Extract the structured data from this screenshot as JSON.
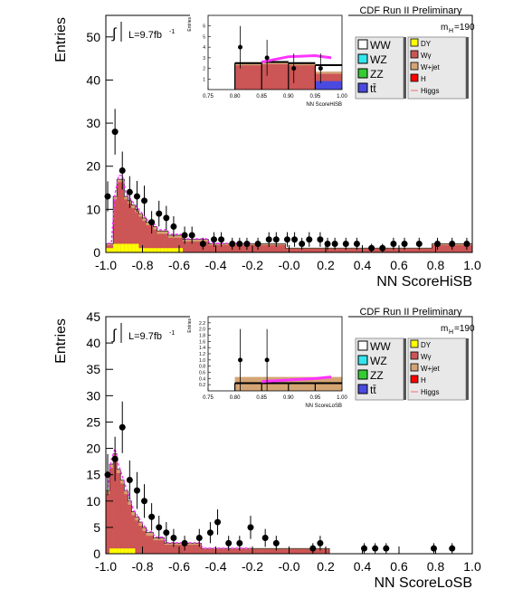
{
  "chart_data": [
    {
      "type": "bar",
      "header": "CDF Run II Preliminary",
      "lumi_label": "L=9.7fb",
      "lumi_exponent": "-1",
      "integral_symbol": "∫",
      "mass_label": "m",
      "mass_subscript": "H",
      "mass_value": "=190",
      "xlabel": "NN ScoreHiSB",
      "ylabel": "Entries",
      "xlim": [
        -1.0,
        1.0
      ],
      "ylim": [
        0,
        55
      ],
      "xticks": [
        "-1.0",
        "-0.8",
        "-0.6",
        "-0.4",
        "-0.2",
        "-0.0",
        "0.2",
        "0.4",
        "0.6",
        "0.8",
        "1.0"
      ],
      "yticks": [
        "0",
        "10",
        "20",
        "30",
        "40",
        "50"
      ],
      "bin_edges_start": -1.0,
      "bin_width": 0.02,
      "stack_total": [
        2,
        2,
        13,
        17,
        17,
        13,
        12,
        11,
        10,
        9,
        8,
        7,
        7,
        6,
        5,
        5,
        5,
        4,
        4,
        4,
        4,
        3,
        3,
        3,
        3,
        3,
        3,
        3,
        2,
        2,
        2,
        2,
        2,
        2,
        2,
        2,
        2,
        2,
        2,
        2,
        2,
        2,
        2,
        2,
        2,
        2,
        2,
        2,
        2,
        1,
        1,
        1,
        1,
        1,
        1,
        1,
        1,
        1,
        1,
        1,
        1,
        1,
        1,
        1,
        1,
        1,
        1,
        1,
        1,
        1,
        1,
        1,
        1,
        1,
        1,
        1,
        1,
        1,
        1,
        1,
        1,
        1,
        1,
        1,
        1,
        1,
        1,
        1,
        1,
        2,
        2,
        2,
        2,
        2,
        2,
        2,
        2,
        2,
        2,
        2
      ],
      "stack_yellow": [
        1,
        1,
        2,
        2,
        2,
        2,
        2,
        2,
        2,
        1,
        1,
        1,
        1,
        1,
        1,
        1,
        1,
        1,
        1,
        1,
        1,
        0,
        0,
        0,
        0,
        0,
        0,
        0,
        0,
        0,
        0,
        0,
        0,
        0,
        0,
        0,
        0,
        0,
        0,
        0,
        0,
        0,
        0,
        0,
        0,
        0,
        0,
        0,
        0,
        0,
        0,
        0,
        0,
        0,
        0,
        0,
        0,
        0,
        0,
        0,
        0,
        0,
        0,
        0,
        0,
        0,
        0,
        0,
        0,
        0,
        0,
        0,
        0,
        0,
        0,
        0,
        0,
        0,
        0,
        0,
        0,
        0,
        0,
        0,
        0,
        0,
        0,
        0,
        0,
        0,
        0,
        0,
        0,
        0,
        0,
        0,
        0,
        0,
        0,
        0
      ],
      "data_points": [
        {
          "x": -0.99,
          "y": 13,
          "err": 3.5
        },
        {
          "x": -0.95,
          "y": 28,
          "err": 5.3
        },
        {
          "x": -0.91,
          "y": 19,
          "err": 4.4
        },
        {
          "x": -0.87,
          "y": 14,
          "err": 3.7
        },
        {
          "x": -0.83,
          "y": 13,
          "err": 3.6
        },
        {
          "x": -0.79,
          "y": 12,
          "err": 3.5
        },
        {
          "x": -0.75,
          "y": 7,
          "err": 2.6
        },
        {
          "x": -0.71,
          "y": 9,
          "err": 3.0
        },
        {
          "x": -0.67,
          "y": 8,
          "err": 2.8
        },
        {
          "x": -0.63,
          "y": 6,
          "err": 2.4
        },
        {
          "x": -0.57,
          "y": 4,
          "err": 2.0
        },
        {
          "x": -0.53,
          "y": 4,
          "err": 2.0
        },
        {
          "x": -0.47,
          "y": 2,
          "err": 1.4
        },
        {
          "x": -0.41,
          "y": 3,
          "err": 1.7
        },
        {
          "x": -0.37,
          "y": 3,
          "err": 1.7
        },
        {
          "x": -0.31,
          "y": 2,
          "err": 1.4
        },
        {
          "x": -0.27,
          "y": 2,
          "err": 1.4
        },
        {
          "x": -0.23,
          "y": 2,
          "err": 1.4
        },
        {
          "x": -0.17,
          "y": 2,
          "err": 1.4
        },
        {
          "x": -0.11,
          "y": 3,
          "err": 1.7
        },
        {
          "x": -0.07,
          "y": 3,
          "err": 1.7
        },
        {
          "x": -0.01,
          "y": 3,
          "err": 1.7
        },
        {
          "x": 0.03,
          "y": 3,
          "err": 1.7
        },
        {
          "x": 0.07,
          "y": 2,
          "err": 1.4
        },
        {
          "x": 0.11,
          "y": 3,
          "err": 1.7
        },
        {
          "x": 0.17,
          "y": 3,
          "err": 1.7
        },
        {
          "x": 0.21,
          "y": 2,
          "err": 1.4
        },
        {
          "x": 0.25,
          "y": 2,
          "err": 1.4
        },
        {
          "x": 0.31,
          "y": 2,
          "err": 1.4
        },
        {
          "x": 0.37,
          "y": 2,
          "err": 1.4
        },
        {
          "x": 0.45,
          "y": 1,
          "err": 1.0
        },
        {
          "x": 0.51,
          "y": 1,
          "err": 1.0
        },
        {
          "x": 0.57,
          "y": 2,
          "err": 1.4
        },
        {
          "x": 0.63,
          "y": 2,
          "err": 1.4
        },
        {
          "x": 0.71,
          "y": 2,
          "err": 1.4
        },
        {
          "x": 0.81,
          "y": 2,
          "err": 1.4
        },
        {
          "x": 0.89,
          "y": 2,
          "err": 1.4
        },
        {
          "x": 0.97,
          "y": 2,
          "err": 1.4
        }
      ],
      "inset": {
        "xlabel": "NN ScoreHiSB",
        "ylabel": "Entries",
        "xlim": [
          0.75,
          1.0
        ],
        "ylim": [
          0,
          7
        ],
        "xticks": [
          "0.75",
          "0.80",
          "0.85",
          "0.90",
          "0.95",
          "1.00"
        ],
        "yticks": [
          "1",
          "2",
          "3",
          "4",
          "5",
          "6"
        ],
        "bins": [
          {
            "x0": 0.8,
            "x1": 0.85,
            "red": 2.3,
            "tan": 0.2,
            "black_top": 2.5,
            "blue": 0
          },
          {
            "x0": 0.85,
            "x1": 0.9,
            "red": 2.4,
            "tan": 0.2,
            "black_top": 2.6,
            "blue": 0
          },
          {
            "x0": 0.9,
            "x1": 0.95,
            "red": 2.3,
            "tan": 0.2,
            "black_top": 2.5,
            "blue": 0
          },
          {
            "x0": 0.95,
            "x1": 1.0,
            "red": 1.5,
            "tan": 0.2,
            "black_top": 2.3,
            "blue": 0.8
          }
        ],
        "higgs_curve": [
          [
            0.85,
            2.6
          ],
          [
            0.9,
            3.1
          ],
          [
            0.95,
            3.2
          ],
          [
            0.98,
            3.0
          ]
        ],
        "data_points": [
          {
            "x": 0.81,
            "y": 4,
            "err": 2.0
          },
          {
            "x": 0.86,
            "y": 3,
            "err": 1.7
          },
          {
            "x": 0.91,
            "y": 2,
            "err": 1.4
          },
          {
            "x": 0.96,
            "y": 2,
            "err": 1.4
          }
        ]
      }
    },
    {
      "type": "bar",
      "header": "CDF Run II Preliminary",
      "lumi_label": "L=9.7fb",
      "lumi_exponent": "-1",
      "integral_symbol": "∫",
      "mass_label": "m",
      "mass_subscript": "H",
      "mass_value": "=190",
      "xlabel": "NN ScoreLoSB",
      "ylabel": "Entries",
      "xlim": [
        -1.0,
        1.0
      ],
      "ylim": [
        0,
        45
      ],
      "xticks": [
        "-1.0",
        "-0.8",
        "-0.6",
        "-0.4",
        "-0.2",
        "-0.0",
        "0.2",
        "0.4",
        "0.6",
        "0.8",
        "1.0"
      ],
      "yticks": [
        "0",
        "5",
        "10",
        "15",
        "20",
        "25",
        "30",
        "35",
        "40",
        "45"
      ],
      "data_points": [
        {
          "x": -0.99,
          "y": 15,
          "err": 3.9
        },
        {
          "x": -0.95,
          "y": 18,
          "err": 4.2
        },
        {
          "x": -0.91,
          "y": 24,
          "err": 4.9
        },
        {
          "x": -0.87,
          "y": 14,
          "err": 3.7
        },
        {
          "x": -0.83,
          "y": 12,
          "err": 3.5
        },
        {
          "x": -0.79,
          "y": 10,
          "err": 3.2
        },
        {
          "x": -0.75,
          "y": 7,
          "err": 2.6
        },
        {
          "x": -0.71,
          "y": 5,
          "err": 2.2
        },
        {
          "x": -0.67,
          "y": 4,
          "err": 2.0
        },
        {
          "x": -0.63,
          "y": 3,
          "err": 1.7
        },
        {
          "x": -0.57,
          "y": 2,
          "err": 1.4
        },
        {
          "x": -0.49,
          "y": 3,
          "err": 1.7
        },
        {
          "x": -0.43,
          "y": 4,
          "err": 2.0
        },
        {
          "x": -0.39,
          "y": 6,
          "err": 2.4
        },
        {
          "x": -0.33,
          "y": 2,
          "err": 1.4
        },
        {
          "x": -0.27,
          "y": 2,
          "err": 1.4
        },
        {
          "x": -0.21,
          "y": 5,
          "err": 2.2
        },
        {
          "x": -0.13,
          "y": 3,
          "err": 1.7
        },
        {
          "x": -0.07,
          "y": 2,
          "err": 1.4
        },
        {
          "x": 0.13,
          "y": 1,
          "err": 1.0
        },
        {
          "x": 0.17,
          "y": 2,
          "err": 1.4
        },
        {
          "x": 0.41,
          "y": 1,
          "err": 1.0
        },
        {
          "x": 0.47,
          "y": 1,
          "err": 1.0
        },
        {
          "x": 0.53,
          "y": 1,
          "err": 1.0
        },
        {
          "x": 0.79,
          "y": 1,
          "err": 1.0
        },
        {
          "x": 0.89,
          "y": 1,
          "err": 1.0
        }
      ],
      "stack_total": [
        12,
        17,
        19,
        16,
        14,
        12,
        10,
        8,
        7,
        6,
        5,
        4,
        4,
        3,
        3,
        3,
        2,
        2,
        2,
        2,
        2,
        2,
        2,
        2,
        2,
        2,
        1,
        1,
        1,
        1,
        1,
        1,
        1,
        1,
        1,
        1,
        1,
        1,
        1,
        1,
        1,
        1,
        1,
        1,
        1,
        1,
        1,
        1,
        1,
        1,
        1,
        1,
        1,
        1,
        1,
        1,
        1,
        1,
        1,
        1,
        1,
        0,
        0,
        0,
        0,
        0,
        0,
        0,
        0,
        0,
        0,
        0,
        0,
        0,
        0,
        0,
        0,
        0,
        0,
        0,
        0,
        0,
        0,
        0,
        0,
        0,
        0,
        0,
        0,
        0,
        0,
        0,
        0,
        0,
        0,
        0,
        0,
        0,
        0,
        0
      ],
      "stack_yellow": [
        0,
        1,
        1,
        1,
        1,
        1,
        1,
        1,
        0,
        0,
        0,
        0,
        0,
        0,
        0,
        0,
        0,
        0,
        0,
        0,
        0,
        0,
        0,
        0,
        0,
        0,
        0,
        0,
        0,
        0,
        0,
        0,
        0,
        0,
        0,
        0,
        0,
        0,
        0,
        0,
        0,
        0,
        0,
        0,
        0,
        0,
        0,
        0,
        0,
        0,
        0,
        0,
        0,
        0,
        0,
        0,
        0,
        0,
        0,
        0,
        0,
        0,
        0,
        0,
        0,
        0,
        0,
        0,
        0,
        0,
        0,
        0,
        0,
        0,
        0,
        0,
        0,
        0,
        0,
        0,
        0,
        0,
        0,
        0,
        0,
        0,
        0,
        0,
        0,
        0,
        0,
        0,
        0,
        0,
        0,
        0,
        0,
        0,
        0,
        0
      ],
      "inset": {
        "xlabel": "NN ScoreLoSB",
        "ylabel": "Entries",
        "xlim": [
          0.75,
          1.0
        ],
        "ylim": [
          0,
          2.4
        ],
        "xticks": [
          "0.75",
          "0.80",
          "0.85",
          "0.90",
          "0.95",
          "1.00"
        ],
        "yticks": [
          "0.2",
          "0.4",
          "0.6",
          "0.8",
          "1.0",
          "1.2",
          "1.4",
          "1.6",
          "1.8",
          "2.0",
          "2.2"
        ],
        "bins": [
          {
            "x0": 0.8,
            "x1": 0.85,
            "red": 0,
            "tan": 0.45,
            "black_top": 0.25,
            "blue": 0
          },
          {
            "x0": 0.85,
            "x1": 0.9,
            "red": 0,
            "tan": 0.45,
            "black_top": 0.25,
            "blue": 0
          },
          {
            "x0": 0.9,
            "x1": 0.95,
            "red": 0,
            "tan": 0.45,
            "black_top": 0.25,
            "blue": 0
          },
          {
            "x0": 0.95,
            "x1": 1.0,
            "red": 0,
            "tan": 0.45,
            "black_top": 0.25,
            "blue": 0
          }
        ],
        "higgs_curve": [
          [
            0.85,
            0.3
          ],
          [
            0.9,
            0.35
          ],
          [
            0.95,
            0.4
          ],
          [
            0.98,
            0.45
          ]
        ],
        "data_points": [
          {
            "x": 0.81,
            "y": 1,
            "err": 1.0
          },
          {
            "x": 0.86,
            "y": 1,
            "err": 1.0
          }
        ]
      }
    }
  ],
  "legend": {
    "left": [
      {
        "label": "WW",
        "color": "#ffffff"
      },
      {
        "label": "WZ",
        "color": "#33e6ee"
      },
      {
        "label": "ZZ",
        "color": "#33cc33"
      },
      {
        "label": "tt̄",
        "color": "#4a4ae0"
      }
    ],
    "right": [
      {
        "label": "DY",
        "color": "#ffff00"
      },
      {
        "label": "Wγ",
        "color": "#cc5555"
      },
      {
        "label": "W+jet",
        "color": "#d4a574"
      },
      {
        "label": "H",
        "color": "#ff0000"
      },
      {
        "label": "Higgs",
        "color": "#ff6666"
      }
    ]
  },
  "colors": {
    "red_fill": "#cc5555",
    "tan_fill": "#d4a574",
    "yellow_fill": "#ffff00",
    "higgs_line": "#ff33ff"
  }
}
